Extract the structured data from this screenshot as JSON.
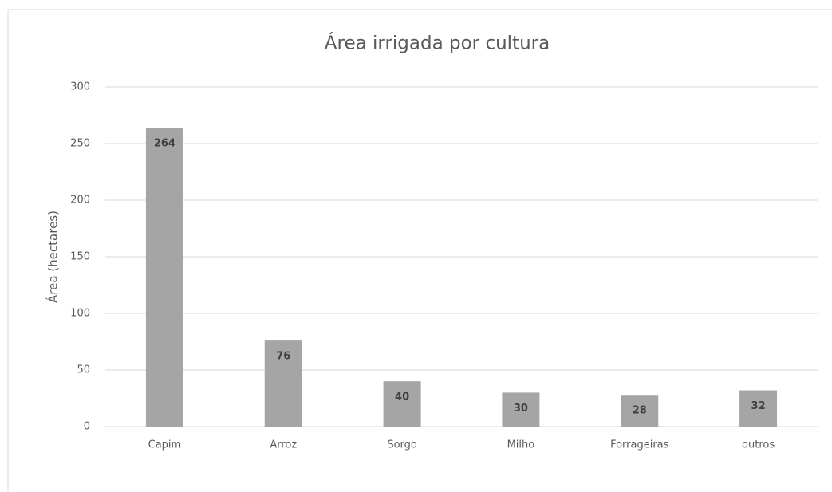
{
  "chart_data": {
    "type": "bar",
    "title": "Área irrigada por cultura",
    "y_label": "Área (hectares)",
    "categories": [
      "Capim",
      "Arroz",
      "Sorgo",
      "Milho",
      "Forrageiras",
      "outros"
    ],
    "values": [
      264,
      76,
      40,
      30,
      28,
      32
    ],
    "color": "#a5a5a5",
    "ylim": [
      0,
      300
    ],
    "yticks": [
      0,
      50,
      100,
      150,
      200,
      250,
      300
    ],
    "grid": true,
    "data_labels": true
  }
}
